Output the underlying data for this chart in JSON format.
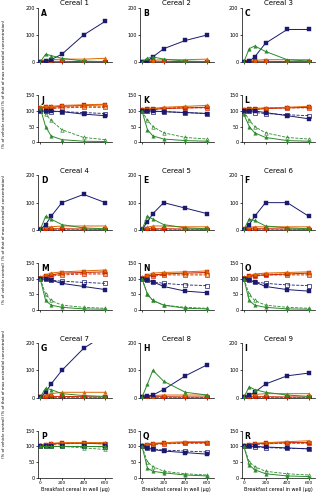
{
  "x": [
    0,
    50,
    100,
    200,
    400,
    600
  ],
  "colors": {
    "navy": "#1a1a6e",
    "green": "#2d8a2d",
    "red": "#cc2200",
    "orange": "#dd6600",
    "darkred": "#880000",
    "brown": "#8B4513"
  },
  "induction_data": {
    "navy_solid": [
      [
        2,
        5,
        10,
        30,
        100,
        150
      ],
      [
        2,
        5,
        20,
        50,
        80,
        100
      ],
      [
        2,
        5,
        20,
        70,
        120,
        120
      ],
      [
        2,
        20,
        50,
        100,
        130,
        100
      ],
      [
        2,
        30,
        60,
        100,
        80,
        60
      ],
      [
        2,
        20,
        50,
        100,
        100,
        50
      ],
      [
        2,
        20,
        50,
        100,
        180,
        230
      ],
      [
        2,
        5,
        10,
        30,
        80,
        120
      ],
      [
        2,
        10,
        20,
        50,
        80,
        90
      ]
    ],
    "green_solid": [
      [
        2,
        30,
        25,
        15,
        5,
        3
      ],
      [
        2,
        15,
        20,
        12,
        5,
        3
      ],
      [
        2,
        50,
        60,
        40,
        10,
        5
      ],
      [
        2,
        50,
        40,
        20,
        8,
        5
      ],
      [
        2,
        50,
        40,
        20,
        8,
        5
      ],
      [
        2,
        40,
        35,
        15,
        8,
        5
      ],
      [
        2,
        35,
        30,
        15,
        8,
        5
      ],
      [
        2,
        50,
        100,
        60,
        20,
        10
      ],
      [
        2,
        40,
        30,
        20,
        10,
        5
      ]
    ],
    "red_solid": [
      [
        3,
        3,
        4,
        4,
        3,
        3
      ],
      [
        3,
        3,
        4,
        4,
        3,
        3
      ],
      [
        3,
        3,
        4,
        4,
        3,
        3
      ],
      [
        3,
        4,
        5,
        5,
        4,
        3
      ],
      [
        3,
        4,
        5,
        5,
        4,
        3
      ],
      [
        3,
        4,
        5,
        5,
        4,
        3
      ],
      [
        3,
        4,
        5,
        5,
        4,
        3
      ],
      [
        3,
        3,
        4,
        4,
        3,
        3
      ],
      [
        3,
        3,
        4,
        4,
        3,
        3
      ]
    ],
    "orange_solid": [
      [
        5,
        8,
        10,
        12,
        12,
        15
      ],
      [
        5,
        8,
        8,
        10,
        10,
        12
      ],
      [
        5,
        8,
        8,
        10,
        10,
        10
      ],
      [
        5,
        10,
        12,
        15,
        15,
        15
      ],
      [
        5,
        10,
        15,
        15,
        12,
        12
      ],
      [
        5,
        10,
        12,
        12,
        12,
        12
      ],
      [
        5,
        10,
        15,
        20,
        20,
        20
      ],
      [
        5,
        8,
        8,
        10,
        10,
        10
      ],
      [
        5,
        10,
        12,
        15,
        15,
        15
      ]
    ],
    "navy_dashed": [
      [
        1,
        1,
        1,
        1,
        1,
        1
      ],
      [
        1,
        1,
        1,
        1,
        1,
        1
      ],
      [
        1,
        1,
        1,
        1,
        1,
        1
      ],
      [
        1,
        1,
        1,
        1,
        1,
        1
      ],
      [
        1,
        1,
        1,
        1,
        1,
        1
      ],
      [
        1,
        1,
        1,
        1,
        1,
        1
      ],
      [
        1,
        1,
        1,
        1,
        1,
        1
      ],
      [
        1,
        1,
        1,
        1,
        1,
        1
      ],
      [
        1,
        1,
        1,
        1,
        1,
        1
      ]
    ],
    "green_dashed": [
      [
        1,
        1,
        1,
        1,
        1,
        1
      ],
      [
        1,
        1,
        1,
        1,
        1,
        1
      ],
      [
        1,
        1,
        1,
        1,
        1,
        1
      ],
      [
        1,
        1,
        1,
        1,
        1,
        1
      ],
      [
        1,
        1,
        1,
        1,
        1,
        1
      ],
      [
        1,
        1,
        1,
        1,
        1,
        1
      ],
      [
        1,
        1,
        1,
        1,
        1,
        1
      ],
      [
        1,
        1,
        1,
        1,
        1,
        1
      ],
      [
        1,
        1,
        1,
        1,
        1,
        1
      ]
    ],
    "red_dashed": [
      [
        2,
        2,
        2,
        2,
        2,
        2
      ],
      [
        2,
        2,
        2,
        2,
        2,
        2
      ],
      [
        2,
        2,
        2,
        2,
        2,
        2
      ],
      [
        2,
        2,
        2,
        2,
        2,
        2
      ],
      [
        2,
        2,
        2,
        2,
        2,
        2
      ],
      [
        2,
        2,
        2,
        2,
        2,
        2
      ],
      [
        2,
        2,
        2,
        2,
        2,
        2
      ],
      [
        2,
        2,
        2,
        2,
        2,
        2
      ],
      [
        2,
        2,
        2,
        2,
        2,
        2
      ]
    ],
    "orange_dashed": [
      [
        3,
        3,
        3,
        3,
        3,
        3
      ],
      [
        3,
        3,
        3,
        3,
        3,
        3
      ],
      [
        3,
        3,
        3,
        3,
        3,
        3
      ],
      [
        3,
        3,
        3,
        3,
        3,
        3
      ],
      [
        3,
        3,
        3,
        3,
        3,
        3
      ],
      [
        3,
        3,
        3,
        3,
        3,
        3
      ],
      [
        3,
        3,
        3,
        3,
        3,
        3
      ],
      [
        3,
        3,
        3,
        3,
        3,
        3
      ],
      [
        3,
        3,
        3,
        3,
        3,
        3
      ]
    ]
  },
  "viability_data": {
    "navy_solid": [
      [
        100,
        100,
        100,
        98,
        90,
        85
      ],
      [
        100,
        100,
        100,
        98,
        95,
        92
      ],
      [
        100,
        100,
        100,
        95,
        85,
        75
      ],
      [
        100,
        98,
        95,
        85,
        75,
        65
      ],
      [
        100,
        95,
        90,
        75,
        60,
        55
      ],
      [
        100,
        95,
        90,
        75,
        65,
        60
      ],
      [
        100,
        100,
        100,
        100,
        100,
        100
      ],
      [
        100,
        95,
        90,
        85,
        80,
        75
      ],
      [
        100,
        100,
        100,
        98,
        95,
        92
      ]
    ],
    "green_solid": [
      [
        110,
        50,
        20,
        8,
        3,
        2
      ],
      [
        100,
        40,
        20,
        10,
        5,
        3
      ],
      [
        90,
        50,
        30,
        15,
        5,
        3
      ],
      [
        100,
        30,
        15,
        8,
        3,
        2
      ],
      [
        100,
        50,
        30,
        15,
        5,
        3
      ],
      [
        100,
        30,
        15,
        8,
        3,
        2
      ],
      [
        100,
        100,
        100,
        100,
        100,
        100
      ],
      [
        100,
        30,
        20,
        15,
        8,
        5
      ],
      [
        100,
        40,
        25,
        12,
        5,
        3
      ]
    ],
    "red_solid": [
      [
        110,
        112,
        112,
        115,
        118,
        120
      ],
      [
        102,
        105,
        105,
        108,
        110,
        112
      ],
      [
        102,
        105,
        105,
        108,
        110,
        112
      ],
      [
        100,
        108,
        112,
        118,
        120,
        122
      ],
      [
        100,
        108,
        112,
        115,
        118,
        120
      ],
      [
        100,
        108,
        110,
        112,
        115,
        118
      ],
      [
        100,
        105,
        108,
        110,
        110,
        108
      ],
      [
        100,
        105,
        108,
        110,
        112,
        112
      ],
      [
        100,
        105,
        108,
        110,
        112,
        112
      ]
    ],
    "orange_solid": [
      [
        112,
        115,
        115,
        118,
        120,
        122
      ],
      [
        105,
        108,
        108,
        112,
        115,
        118
      ],
      [
        105,
        108,
        108,
        110,
        112,
        115
      ],
      [
        105,
        112,
        118,
        122,
        125,
        128
      ],
      [
        105,
        112,
        118,
        120,
        122,
        125
      ],
      [
        105,
        110,
        115,
        118,
        120,
        122
      ],
      [
        105,
        108,
        110,
        112,
        112,
        112
      ],
      [
        105,
        108,
        110,
        112,
        115,
        115
      ],
      [
        105,
        108,
        110,
        112,
        115,
        118
      ]
    ],
    "navy_dashed": [
      [
        100,
        100,
        98,
        98,
        95,
        92
      ],
      [
        100,
        100,
        98,
        98,
        95,
        92
      ],
      [
        100,
        100,
        95,
        92,
        88,
        85
      ],
      [
        100,
        98,
        95,
        92,
        88,
        85
      ],
      [
        100,
        95,
        90,
        85,
        80,
        78
      ],
      [
        100,
        95,
        90,
        85,
        80,
        78
      ],
      [
        100,
        100,
        100,
        100,
        100,
        98
      ],
      [
        100,
        95,
        92,
        88,
        85,
        82
      ],
      [
        100,
        100,
        98,
        96,
        94,
        92
      ]
    ],
    "green_dashed": [
      [
        100,
        90,
        70,
        40,
        15,
        8
      ],
      [
        100,
        70,
        50,
        30,
        15,
        10
      ],
      [
        100,
        70,
        50,
        30,
        15,
        10
      ],
      [
        100,
        50,
        30,
        15,
        8,
        5
      ],
      [
        100,
        50,
        30,
        15,
        8,
        5
      ],
      [
        100,
        50,
        30,
        15,
        8,
        5
      ],
      [
        100,
        100,
        100,
        100,
        95,
        90
      ],
      [
        100,
        50,
        35,
        20,
        12,
        8
      ],
      [
        100,
        50,
        35,
        20,
        12,
        8
      ]
    ],
    "red_dashed": [
      [
        105,
        108,
        108,
        110,
        112,
        112
      ],
      [
        102,
        105,
        105,
        108,
        110,
        110
      ],
      [
        102,
        105,
        105,
        108,
        110,
        110
      ],
      [
        102,
        106,
        108,
        112,
        115,
        115
      ],
      [
        102,
        106,
        108,
        112,
        112,
        112
      ],
      [
        102,
        106,
        108,
        112,
        112,
        112
      ],
      [
        102,
        104,
        106,
        108,
        110,
        108
      ],
      [
        102,
        104,
        106,
        108,
        110,
        110
      ],
      [
        102,
        104,
        106,
        108,
        110,
        110
      ]
    ],
    "orange_dashed": [
      [
        108,
        110,
        110,
        112,
        115,
        115
      ],
      [
        105,
        108,
        108,
        110,
        112,
        112
      ],
      [
        105,
        108,
        108,
        110,
        112,
        112
      ],
      [
        105,
        108,
        112,
        115,
        118,
        118
      ],
      [
        105,
        108,
        112,
        115,
        115,
        115
      ],
      [
        105,
        108,
        112,
        115,
        115,
        115
      ],
      [
        105,
        106,
        108,
        110,
        112,
        110
      ],
      [
        105,
        106,
        108,
        110,
        112,
        112
      ],
      [
        105,
        106,
        108,
        110,
        112,
        112
      ]
    ]
  },
  "cereals": [
    "Cereal 1",
    "Cereal 2",
    "Cereal 3",
    "Cereal 4",
    "Cereal 5",
    "Cereal 6",
    "Cereal 7",
    "Cereal 8",
    "Cereal 9"
  ],
  "panel_labels_top": [
    "A",
    "B",
    "C",
    "D",
    "E",
    "F",
    "G",
    "H",
    "I"
  ],
  "panel_labels_bot": [
    "J",
    "K",
    "L",
    "M",
    "N",
    "O",
    "P",
    "Q",
    "R"
  ],
  "induction_ylim": [
    0,
    200
  ],
  "viability_ylim": [
    0,
    150
  ],
  "xticks": [
    0,
    200,
    400,
    600
  ],
  "induction_yticks": [
    0,
    100,
    200
  ],
  "viability_yticks": [
    0,
    50,
    100,
    150
  ],
  "ylabel_induction": "Relative induction\n(% of that of max oestradiol concentration)",
  "ylabel_viability": "Cell Viability\n(% of vehicle control)",
  "xlabel": "Breakfast cereal in well (μg)"
}
